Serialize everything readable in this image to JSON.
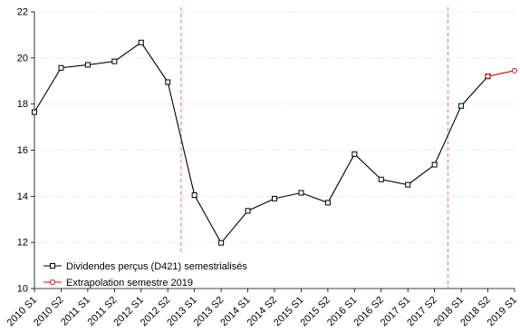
{
  "chart_data": {
    "type": "line",
    "categories": [
      "2010 S1",
      "2010 S2",
      "2011 S1",
      "2011 S2",
      "2012 S1",
      "2012 S2",
      "2013 S1",
      "2013 S2",
      "2014 S1",
      "2014 S2",
      "2015 S1",
      "2015 S2",
      "2016 S1",
      "2016 S2",
      "2017 S1",
      "2017 S2",
      "2018 S1",
      "2018 S2",
      "2019 S1"
    ],
    "ylim": [
      10,
      22
    ],
    "yticks": [
      10,
      12,
      14,
      16,
      18,
      20,
      22
    ],
    "grid": true,
    "legend_position": "bottom-left",
    "vertical_markers": [
      "2012 S2/2013 S1",
      "2017 S2/2018 S1"
    ],
    "series": [
      {
        "name": "Dividendes perçus (D421) semestrialisés",
        "color": "#000000",
        "marker": "square",
        "values": [
          17.65,
          19.57,
          19.7,
          19.85,
          20.67,
          18.95,
          14.05,
          11.98,
          13.37,
          13.9,
          14.15,
          13.72,
          15.83,
          14.73,
          14.5,
          15.37,
          17.92,
          19.2,
          null
        ]
      },
      {
        "name": "Extrapolation semestre 2019",
        "color": "#e8000b",
        "marker": "circle",
        "values": [
          null,
          null,
          null,
          null,
          null,
          null,
          null,
          null,
          null,
          null,
          null,
          null,
          null,
          null,
          null,
          null,
          null,
          19.2,
          19.45
        ]
      }
    ]
  }
}
